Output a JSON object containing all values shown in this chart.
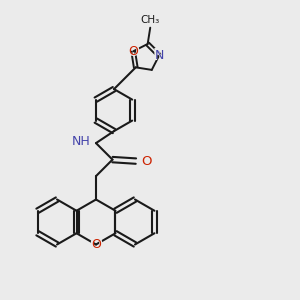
{
  "bg": "#ebebeb",
  "bc": "#1a1a1a",
  "Nc": "#4444aa",
  "Oc": "#cc2200",
  "figsize": [
    3.0,
    3.0
  ],
  "dpi": 100,
  "xlim": [
    -1.0,
    9.0
  ],
  "ylim": [
    -0.5,
    9.5
  ]
}
